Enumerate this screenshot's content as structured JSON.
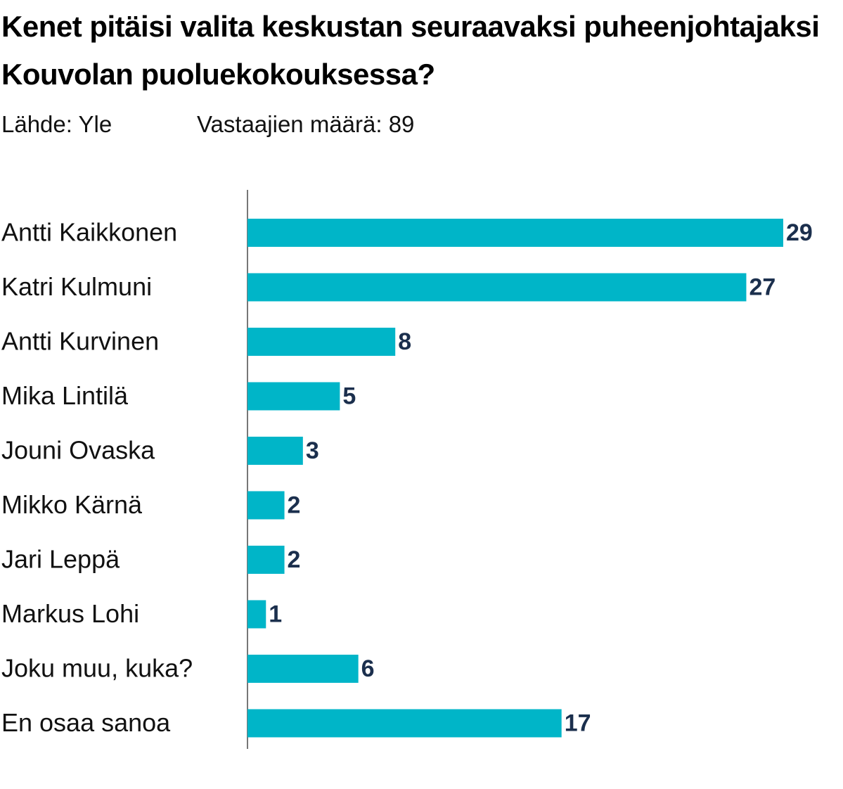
{
  "chart_data": {
    "type": "bar",
    "orientation": "horizontal",
    "title": "Kenet pitäisi valita keskustan seuraavaksi puheenjohtajaksi Kouvolan puoluekokouksessa?",
    "source": "Lähde: Yle",
    "subtitle": "Vastaajien määrä: 89",
    "categories": [
      "Antti Kaikkonen",
      "Katri Kulmuni",
      "Antti Kurvinen",
      "Mika Lintilä",
      "Jouni Ovaska",
      "Mikko Kärnä",
      "Jari Leppä",
      "Markus Lohi",
      "Joku muu, kuka?",
      "En osaa sanoa"
    ],
    "values": [
      29,
      27,
      8,
      5,
      3,
      2,
      2,
      1,
      6,
      17
    ],
    "color": "#00b5c8",
    "xlim": [
      0,
      29
    ]
  }
}
